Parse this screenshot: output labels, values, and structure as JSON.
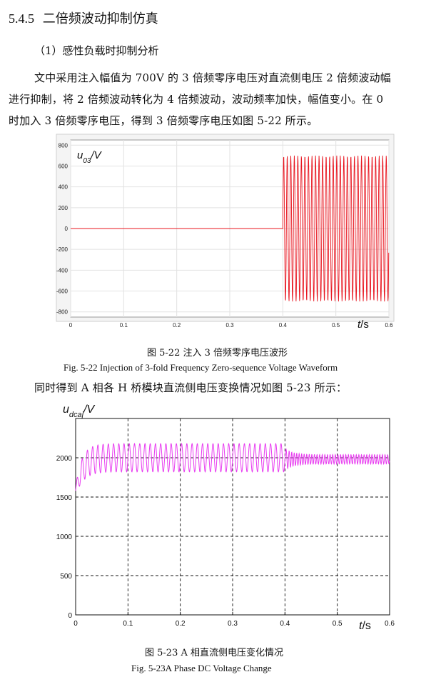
{
  "section": {
    "number": "5.4.5",
    "title": "二倍频波动抑制仿真"
  },
  "subsection": {
    "title": "（1）感性负载时抑制分析"
  },
  "paragraphs": {
    "p1_line1": "文中采用注入幅值为 700V 的 3 倍频零序电压对直流侧电压 2 倍频波动幅",
    "p1_line2": "进行抑制，将 2 倍频波动转化为 4 倍频波动，波动频率加快，幅值变小。在 0",
    "p1_line3": "时加入 3 倍频零序电压，得到 3 倍频零序电压如图 5-22 所示。",
    "p2": "同时得到 A 相各 H 桥模块直流侧电压变换情况如图 5-23 所示："
  },
  "figures": {
    "fig22": {
      "caption_zh": "图 5-22  注入 3 倍频零序电压波形",
      "caption_en": "Fig. 5-22 Injection of 3-fold Frequency Zero-sequence Voltage Waveform"
    },
    "fig23": {
      "caption_zh": "图 5-23    A 相直流侧电压变化情况",
      "caption_en": "Fig. 5-23A Phase DC Voltage Change"
    }
  },
  "chart_data": [
    {
      "type": "line",
      "ylabel_base": "u",
      "ylabel_sub": "03",
      "ylabel_unit": "/V",
      "xlabel_var": "t",
      "xlabel_unit": "/s",
      "xlim": [
        0,
        0.6
      ],
      "ylim": [
        -850,
        850
      ],
      "x_ticks": [
        "0",
        "0.1",
        "0.2",
        "0.3",
        "0.4",
        "0.5",
        "0.6"
      ],
      "y_ticks": [
        "800",
        "600",
        "400",
        "200",
        "0",
        "-200",
        "-400",
        "-600",
        "-800"
      ],
      "y_tick_values": [
        800,
        600,
        400,
        200,
        0,
        -200,
        -400,
        -600,
        -800
      ],
      "grid": true,
      "color": "#e8141e",
      "series": [
        {
          "description": "zero before injection, 150 Hz sine of amplitude 700 after injection",
          "inject_time": 0.4,
          "amplitude": 700,
          "frequency_hz": 150
        }
      ]
    },
    {
      "type": "line",
      "ylabel_base": "u",
      "ylabel_sub": "dcaj",
      "ylabel_unit": "/V",
      "xlabel_var": "t",
      "xlabel_unit": "/s",
      "xlim": [
        0,
        0.6
      ],
      "ylim": [
        0,
        2500
      ],
      "x_ticks": [
        "0",
        "0.1",
        "0.2",
        "0.3",
        "0.4",
        "0.5",
        "0.6"
      ],
      "y_ticks": [
        "2000",
        "1500",
        "1000",
        "500",
        "0"
      ],
      "y_tick_values": [
        2000,
        1500,
        1000,
        500,
        0
      ],
      "grid": true,
      "grid_style": "dashed",
      "color": "#e83cf0",
      "series": [
        {
          "description": "DC voltage settling to 2000 with 100 Hz ripple of about ±140 before 0.4 s and 200 Hz ripple of about ±60 after",
          "mean": 2000,
          "ripple_before": 140,
          "ripple_after": 60,
          "freq_before_hz": 100,
          "freq_after_hz": 200,
          "change_time": 0.4
        }
      ]
    }
  ]
}
